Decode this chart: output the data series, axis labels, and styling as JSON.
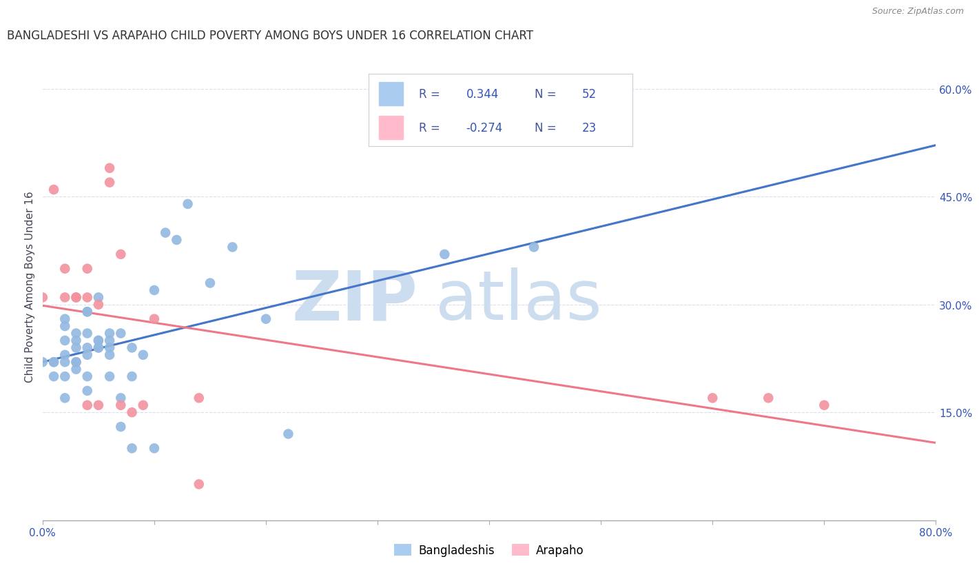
{
  "title": "BANGLADESHI VS ARAPAHO CHILD POVERTY AMONG BOYS UNDER 16 CORRELATION CHART",
  "source": "Source: ZipAtlas.com",
  "ylabel": "Child Poverty Among Boys Under 16",
  "xlim": [
    0,
    0.8
  ],
  "ylim": [
    0,
    0.65
  ],
  "xtick_vals": [
    0.0,
    0.1,
    0.2,
    0.3,
    0.4,
    0.5,
    0.6,
    0.7,
    0.8
  ],
  "xticklabels": [
    "0.0%",
    "",
    "",
    "",
    "",
    "",
    "",
    "",
    "80.0%"
  ],
  "ytick_right_labels": [
    "15.0%",
    "30.0%",
    "45.0%",
    "60.0%"
  ],
  "ytick_right_values": [
    0.15,
    0.3,
    0.45,
    0.6
  ],
  "legend_r_bangladeshi": "0.344",
  "legend_n_bangladeshi": "52",
  "legend_r_arapaho": "-0.274",
  "legend_n_arapaho": "23",
  "bangladeshi_color": "#93B8E0",
  "arapaho_color": "#F2929F",
  "trend_bangladeshi_color": "#4477CC",
  "trend_arapaho_color": "#EE7788",
  "trend_dashed_color": "#BBBBCC",
  "legend_text_color": "#3355BB",
  "legend_label_color": "#445599",
  "watermark_zip_color": "#CCDDF0",
  "watermark_atlas_color": "#CCDDF0",
  "background_color": "#FFFFFF",
  "grid_color": "#DDDDEE",
  "bangladeshi_x": [
    0.0,
    0.01,
    0.01,
    0.01,
    0.02,
    0.02,
    0.02,
    0.02,
    0.02,
    0.02,
    0.02,
    0.03,
    0.03,
    0.03,
    0.03,
    0.03,
    0.03,
    0.04,
    0.04,
    0.04,
    0.04,
    0.04,
    0.04,
    0.04,
    0.05,
    0.05,
    0.05,
    0.05,
    0.05,
    0.06,
    0.06,
    0.06,
    0.06,
    0.06,
    0.07,
    0.07,
    0.07,
    0.08,
    0.08,
    0.08,
    0.09,
    0.1,
    0.1,
    0.11,
    0.12,
    0.13,
    0.15,
    0.17,
    0.2,
    0.22,
    0.36,
    0.44
  ],
  "bangladeshi_y": [
    0.22,
    0.2,
    0.22,
    0.22,
    0.22,
    0.28,
    0.27,
    0.2,
    0.25,
    0.23,
    0.17,
    0.24,
    0.25,
    0.26,
    0.22,
    0.22,
    0.21,
    0.29,
    0.29,
    0.24,
    0.26,
    0.2,
    0.18,
    0.23,
    0.25,
    0.24,
    0.25,
    0.24,
    0.31,
    0.26,
    0.25,
    0.24,
    0.23,
    0.2,
    0.26,
    0.17,
    0.13,
    0.24,
    0.2,
    0.1,
    0.23,
    0.32,
    0.1,
    0.4,
    0.39,
    0.44,
    0.33,
    0.38,
    0.28,
    0.12,
    0.37,
    0.38
  ],
  "arapaho_x": [
    0.0,
    0.01,
    0.02,
    0.02,
    0.03,
    0.03,
    0.04,
    0.04,
    0.04,
    0.05,
    0.05,
    0.06,
    0.06,
    0.07,
    0.07,
    0.08,
    0.09,
    0.1,
    0.14,
    0.14,
    0.6,
    0.65,
    0.7
  ],
  "arapaho_y": [
    0.31,
    0.46,
    0.31,
    0.35,
    0.31,
    0.31,
    0.31,
    0.35,
    0.16,
    0.16,
    0.3,
    0.47,
    0.49,
    0.16,
    0.37,
    0.15,
    0.16,
    0.28,
    0.17,
    0.05,
    0.17,
    0.17,
    0.16
  ]
}
